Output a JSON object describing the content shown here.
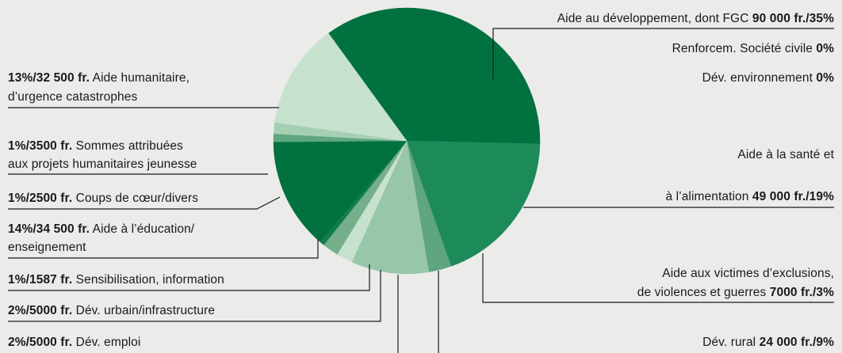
{
  "chart_data": {
    "type": "pie",
    "title": "",
    "start_angle_deg": 324,
    "slices": [
      {
        "key": "dev",
        "label": "Aide au développement, dont FGC",
        "value": 90000,
        "percent": 35,
        "value_text": "90 000 fr.",
        "percent_text": "35%",
        "color": "#027140"
      },
      {
        "key": "sante",
        "label": "Aide à la santé et à l’alimentation",
        "value": 49000,
        "percent": 19,
        "value_text": "49 000 fr.",
        "percent_text": "19%",
        "color": "#1d8a5a"
      },
      {
        "key": "victimes",
        "label": "Aide aux victimes d’exclusions, de violences et guerres",
        "value": 7000,
        "percent": 3,
        "value_text": "7000 fr.",
        "percent_text": "3%",
        "color": "#5fa57f"
      },
      {
        "key": "rural",
        "label": "Dév. rural",
        "value": 24000,
        "percent": 9,
        "value_text": "24 000 fr.",
        "percent_text": "9%",
        "color": "#97c6a8"
      },
      {
        "key": "emploi",
        "label": "Dév. emploi",
        "value": 5000,
        "percent": 2,
        "value_text": "5000 fr.",
        "percent_text": "2%",
        "color": "#c7e1cf"
      },
      {
        "key": "urbain",
        "label": "Dév. urbain/infrastructure",
        "value": 5000,
        "percent": 2,
        "value_text": "5000 fr.",
        "percent_text": "2%",
        "color": "#74ae8b"
      },
      {
        "key": "sensib",
        "label": "Sensibilisation, information",
        "value": 1587,
        "percent": 1,
        "value_text": "1587 fr.",
        "percent_text": "1%",
        "color": "#127c4c"
      },
      {
        "key": "educ",
        "label": "Aide à l’éducation/ enseignement",
        "value": 34500,
        "percent": 14,
        "value_text": "34 500 fr.",
        "percent_text": "14%",
        "color": "#027140"
      },
      {
        "key": "coups",
        "label": "Coups de cœur/divers",
        "value": 2500,
        "percent": 1,
        "value_text": "2500 fr.",
        "percent_text": "1%",
        "color": "#5fa57f"
      },
      {
        "key": "jeunesse",
        "label": "Sommes attribuées aux projets humanitaires jeunesse",
        "value": 3500,
        "percent": 1,
        "value_text": "3500 fr.",
        "percent_text": "1%",
        "color": "#a5cfb3"
      },
      {
        "key": "humanit",
        "label": "Aide humanitaire, d’urgence catastrophes",
        "value": 32500,
        "percent": 13,
        "value_text": "32 500 fr.",
        "percent_text": "13%",
        "color": "#c7e1cf"
      }
    ],
    "zero_categories": [
      {
        "label": "Renforcem. Société civile",
        "percent_text": "0%"
      },
      {
        "label": "Dév. environnement",
        "percent_text": "0%"
      }
    ]
  },
  "labels": {
    "dev": {
      "text": "Aide au développement, dont FGC ",
      "bold": "90 000 fr./35%"
    },
    "civile": {
      "text": "Renforcem. Société civile ",
      "bold": "0%"
    },
    "envir": {
      "text": "Dév. environnement ",
      "bold": "0%"
    },
    "sante_1": {
      "text": "Aide à la santé et"
    },
    "sante_2": {
      "text": "à l’alimentation ",
      "bold": "49 000 fr./19%"
    },
    "victimes_1": {
      "text": "Aide aux victimes d’exclusions,"
    },
    "victimes_2": {
      "text": "de violences et guerres ",
      "bold": "7000 fr./3%"
    },
    "rural": {
      "text": "Dév. rural ",
      "bold": "24 000 fr./9%"
    },
    "humanit_1": {
      "bold": "13%/32 500 fr.",
      "text": " Aide humanitaire,"
    },
    "humanit_2": {
      "text": "d’urgence catastrophes"
    },
    "jeunesse_1": {
      "bold": "1%/3500 fr.",
      "text": " Sommes attribuées"
    },
    "jeunesse_2": {
      "text": "aux projets humanitaires jeunesse"
    },
    "coups": {
      "bold": "1%/2500 fr.",
      "text": " Coups de cœur/divers"
    },
    "educ_1": {
      "bold": "14%/34 500 fr.",
      "text": " Aide à l’éducation/"
    },
    "educ_2": {
      "text": "enseignement"
    },
    "sensib": {
      "bold": "1%/1587 fr.",
      "text": " Sensibilisation, information"
    },
    "urbain": {
      "bold": "2%/5000 fr.",
      "text": " Dév. urbain/infrastructure"
    },
    "emploi": {
      "bold": "2%/5000 fr.",
      "text": " Dév. emploi"
    }
  }
}
